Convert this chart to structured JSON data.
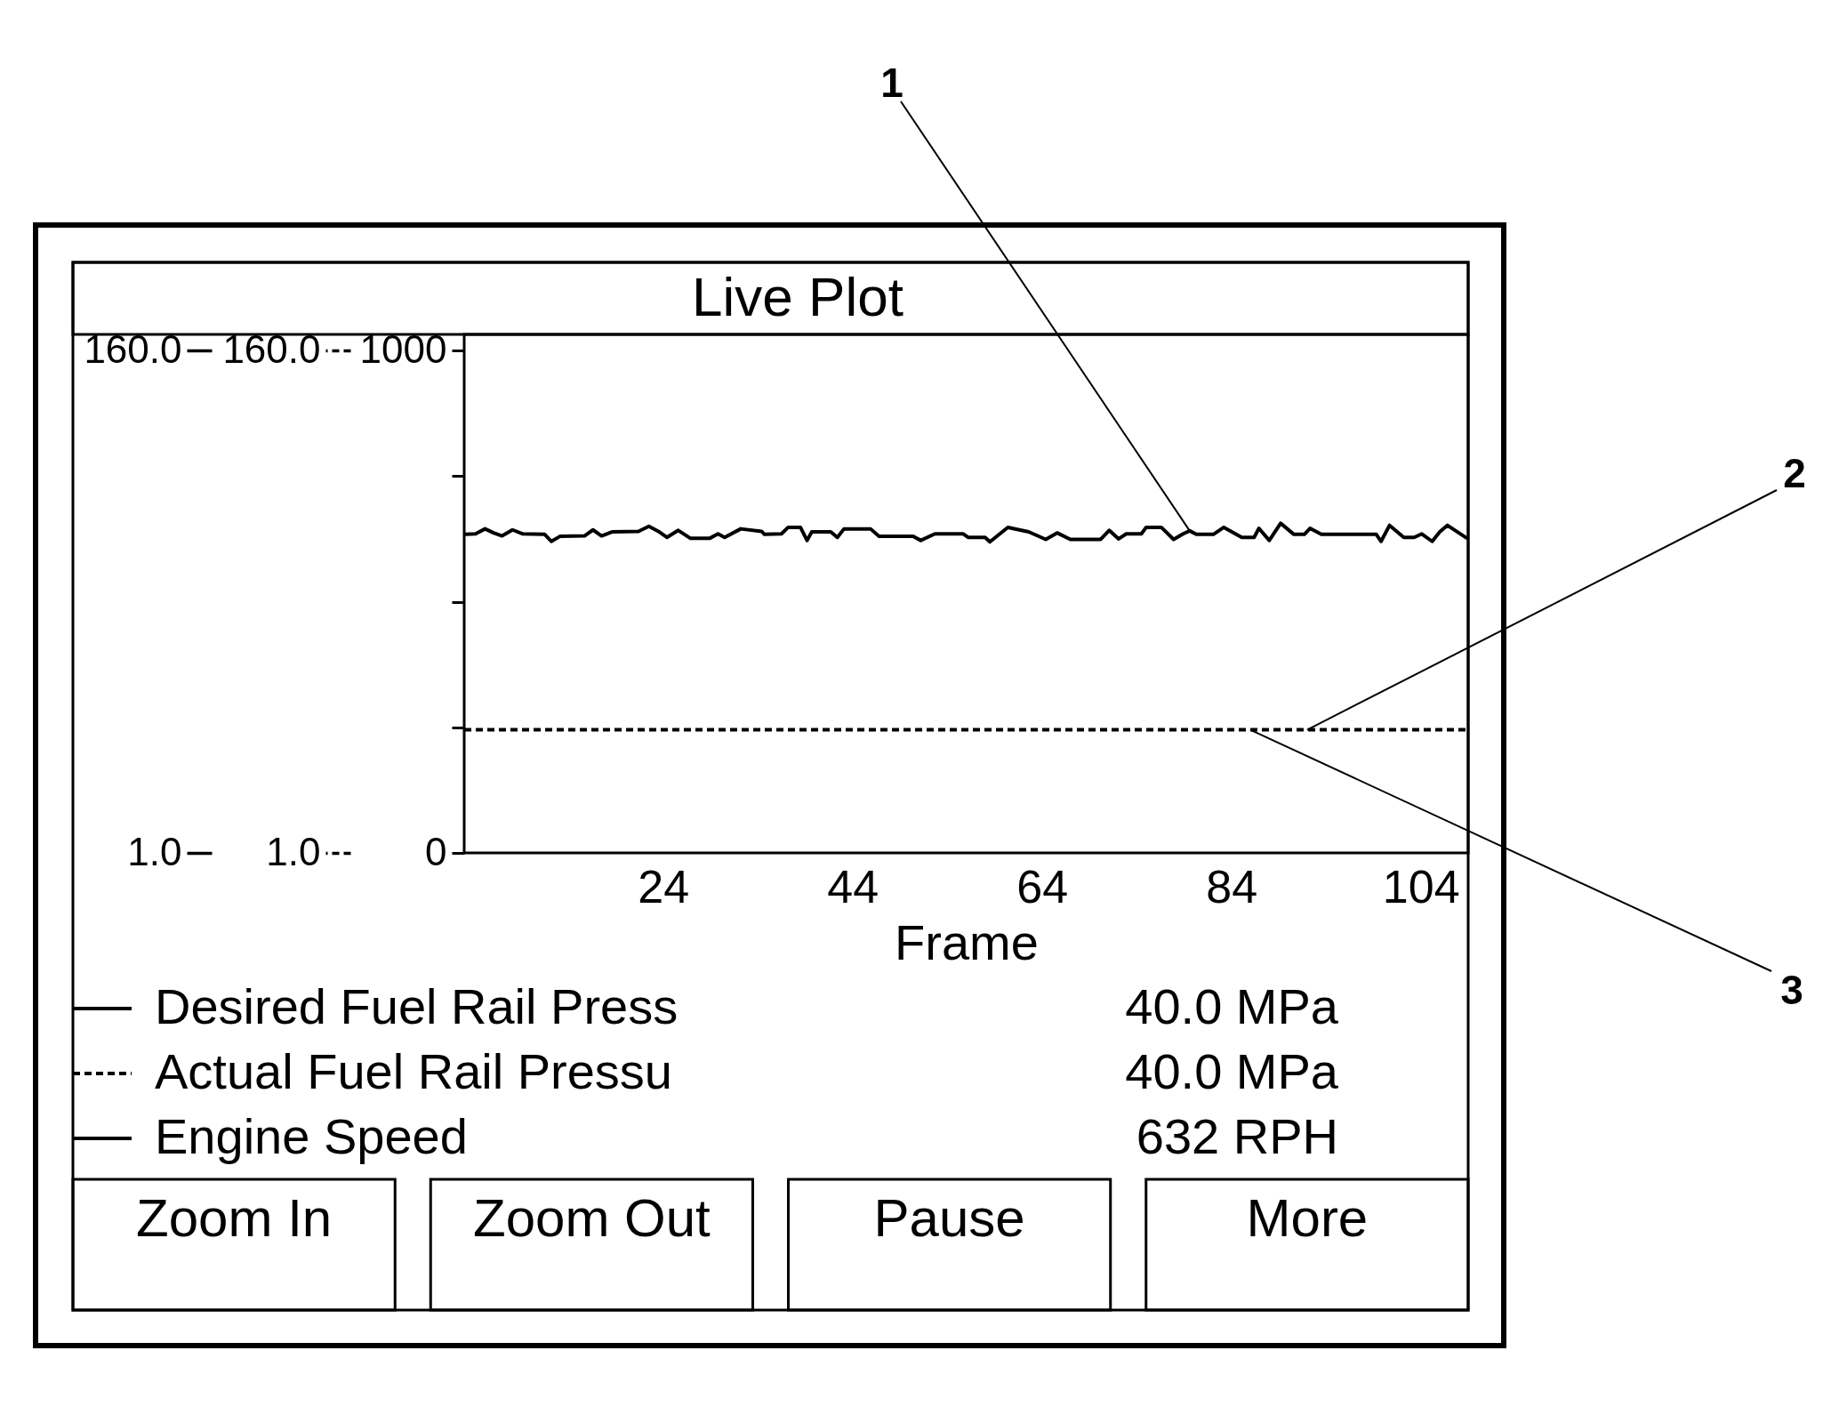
{
  "chart_data": {
    "type": "line",
    "title": "Live Plot",
    "xlabel": "Frame",
    "x": [
      3.1,
      4.2,
      5.2,
      6.1,
      7.0,
      8.1,
      9.2,
      11.5,
      12.2,
      13.1,
      15.7,
      16.6,
      17.5,
      18.6,
      21.4,
      22.5,
      23.5,
      24.4,
      25.6,
      26.9,
      28.9,
      29.8,
      30.5,
      32.2,
      34.4,
      34.7,
      36.5,
      37.2,
      38.5,
      39.2,
      39.7,
      41.7,
      42.4,
      43.1,
      45.9,
      46.8,
      50.4,
      51.2,
      52.7,
      55.7,
      56.2,
      58.0,
      58.5,
      60.4,
      62.6,
      64.4,
      65.6,
      67.0,
      70.2,
      71.1,
      72.1,
      72.9,
      74.5,
      75.0,
      76.6,
      77.9,
      78.9,
      79.6,
      80.3,
      82.1,
      83.2,
      85.1,
      86.4,
      86.9,
      88.0,
      89.2,
      90.6,
      91.7,
      92.3,
      93.5,
      99.3,
      99.8,
      100.7,
      102.2,
      103.3,
      104.1,
      105.2,
      106.0,
      106.8,
      108.9
    ],
    "xlim": [
      3,
      109
    ],
    "xticks": [
      24,
      44,
      64,
      84,
      104
    ],
    "ylim": [
      0,
      1032
    ],
    "yticks": [
      0,
      {
        "value": 250,
        "label": null
      },
      {
        "value": 500,
        "label": null
      },
      {
        "value": 750,
        "label": null
      },
      1000
    ],
    "y2lim": [
      1,
      165.1
    ],
    "y2ticks": [
      {
        "value": 1,
        "label": "1.0"
      },
      {
        "value": 160,
        "label": "160.0"
      }
    ],
    "y3lim": [
      1,
      165.1
    ],
    "y3ticks": [
      {
        "value": 1,
        "label": "1.0"
      },
      {
        "value": 160,
        "label": "160.0"
      }
    ],
    "series": [
      {
        "name": "Desired Fuel Rail Press",
        "color": "#000000",
        "axis": "y2",
        "line_style": "solid",
        "values": [
          null,
          null,
          null,
          null,
          null,
          null,
          null,
          null,
          null,
          null,
          null,
          null,
          null,
          null,
          null,
          null,
          null,
          null,
          null,
          null,
          null,
          null,
          null,
          null,
          null,
          null,
          null,
          null,
          null,
          null,
          null,
          null,
          null,
          null,
          null,
          null,
          null,
          null,
          null,
          null,
          null,
          null,
          null,
          null,
          null,
          null,
          null,
          null,
          null,
          null,
          null,
          null,
          null,
          null,
          null,
          null,
          null,
          null,
          null,
          null,
          null,
          null,
          null,
          null,
          null,
          null,
          null,
          null,
          null,
          null,
          null,
          null,
          null,
          null,
          null,
          null,
          null,
          null,
          null,
          null
        ]
      },
      {
        "name": "Actual Fuel Rail Pressu",
        "color": "#000000",
        "axis": "y3",
        "line_style": "dotted",
        "x": [
          3,
          109
        ],
        "values": [
          40.0,
          40.0
        ]
      },
      {
        "name": "Engine Speed",
        "color": "#000000",
        "line_style": "solid",
        "values": [
          634,
          635,
          645,
          637,
          631,
          643,
          635,
          634,
          620,
          630,
          631,
          643,
          631,
          639,
          640,
          650,
          640,
          628,
          642,
          626,
          626,
          635,
          628,
          645,
          640,
          634,
          635,
          648,
          648,
          622,
          639,
          639,
          628,
          645,
          645,
          630,
          630,
          622,
          635,
          635,
          628,
          628,
          619,
          648,
          639,
          624,
          637,
          624,
          624,
          642,
          625,
          635,
          635,
          648,
          648,
          624,
          635,
          641,
          634,
          634,
          648,
          628,
          628,
          646,
          622,
          656,
          634,
          634,
          646,
          634,
          634,
          620,
          652,
          628,
          628,
          635,
          620,
          639,
          652,
          626
        ]
      }
    ],
    "legend": "bottom",
    "annotations": [
      "40.0 MPa",
      "40.0 MPa",
      "632 RPH",
      "Zoom In",
      "Zoom Out",
      "Pause",
      "More",
      {
        "text": "1",
        "x": 79.6,
        "y": 641
      },
      {
        "text": "2",
        "x": 92,
        "y": 245
      },
      {
        "text": "3",
        "x": 86,
        "y": 245
      }
    ]
  }
}
